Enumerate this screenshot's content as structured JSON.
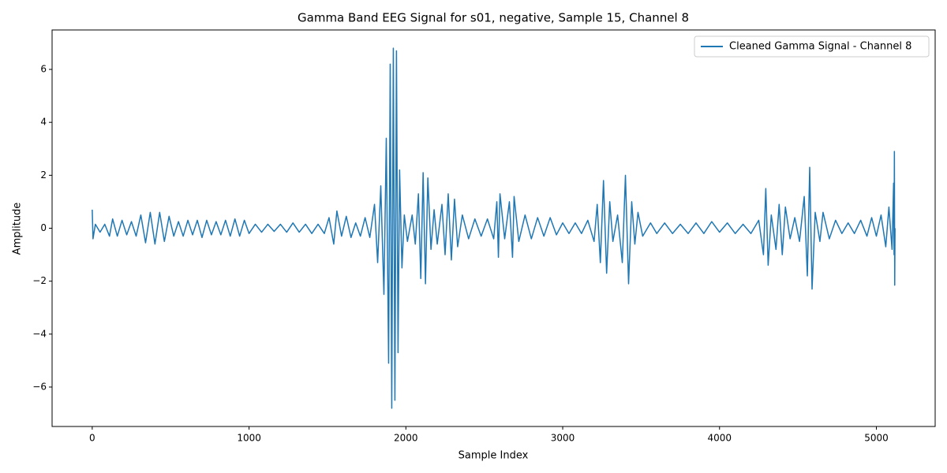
{
  "chart_data": {
    "type": "line",
    "title": "Gamma Band EEG Signal for s01, negative, Sample 15, Channel 8",
    "xlabel": "Sample Index",
    "ylabel": "Amplitude",
    "x": [
      0,
      5,
      20,
      50,
      80,
      110,
      130,
      160,
      190,
      220,
      250,
      280,
      310,
      340,
      370,
      400,
      430,
      460,
      490,
      520,
      550,
      580,
      610,
      640,
      670,
      700,
      730,
      760,
      790,
      820,
      850,
      880,
      910,
      940,
      970,
      1000,
      1040,
      1080,
      1120,
      1160,
      1200,
      1240,
      1280,
      1320,
      1360,
      1400,
      1440,
      1480,
      1510,
      1540,
      1560,
      1590,
      1620,
      1650,
      1680,
      1710,
      1740,
      1770,
      1800,
      1820,
      1840,
      1860,
      1875,
      1890,
      1900,
      1910,
      1920,
      1930,
      1940,
      1950,
      1960,
      1975,
      1990,
      2010,
      2040,
      2060,
      2080,
      2095,
      2110,
      2125,
      2140,
      2160,
      2180,
      2200,
      2230,
      2250,
      2270,
      2290,
      2310,
      2330,
      2360,
      2400,
      2440,
      2480,
      2520,
      2560,
      2580,
      2590,
      2600,
      2630,
      2660,
      2680,
      2690,
      2720,
      2760,
      2800,
      2840,
      2880,
      2920,
      2960,
      3000,
      3040,
      3080,
      3120,
      3160,
      3200,
      3220,
      3240,
      3260,
      3280,
      3300,
      3320,
      3350,
      3380,
      3400,
      3420,
      3440,
      3460,
      3480,
      3510,
      3560,
      3600,
      3650,
      3700,
      3750,
      3800,
      3850,
      3900,
      3950,
      4000,
      4050,
      4100,
      4150,
      4200,
      4250,
      4280,
      4295,
      4310,
      4330,
      4360,
      4380,
      4400,
      4420,
      4450,
      4480,
      4510,
      4540,
      4560,
      4575,
      4590,
      4610,
      4640,
      4660,
      4700,
      4740,
      4780,
      4820,
      4860,
      4900,
      4940,
      4970,
      5000,
      5030,
      5060,
      5080,
      5100,
      5110,
      5113,
      5115,
      5117,
      5119
    ],
    "series": [
      {
        "name": "Cleaned Gamma Signal - Channel 8",
        "color": "#1f77b4",
        "values": [
          0.7,
          -0.4,
          0.15,
          -0.15,
          0.15,
          -0.3,
          0.35,
          -0.3,
          0.3,
          -0.25,
          0.25,
          -0.3,
          0.5,
          -0.55,
          0.6,
          -0.6,
          0.6,
          -0.5,
          0.45,
          -0.3,
          0.25,
          -0.3,
          0.3,
          -0.25,
          0.3,
          -0.35,
          0.3,
          -0.25,
          0.25,
          -0.25,
          0.3,
          -0.3,
          0.35,
          -0.3,
          0.3,
          -0.2,
          0.15,
          -0.15,
          0.15,
          -0.12,
          0.15,
          -0.15,
          0.2,
          -0.15,
          0.15,
          -0.2,
          0.15,
          -0.2,
          0.4,
          -0.6,
          0.65,
          -0.3,
          0.45,
          -0.35,
          0.2,
          -0.3,
          0.4,
          -0.35,
          0.9,
          -1.3,
          1.6,
          -2.5,
          3.4,
          -5.1,
          6.2,
          -6.8,
          6.8,
          -6.5,
          6.7,
          -4.7,
          2.2,
          -1.5,
          0.5,
          -0.5,
          0.5,
          -0.6,
          1.3,
          -1.9,
          2.1,
          -2.1,
          1.9,
          -0.8,
          0.7,
          -0.6,
          0.9,
          -1.0,
          1.3,
          -1.2,
          1.1,
          -0.7,
          0.5,
          -0.4,
          0.35,
          -0.3,
          0.35,
          -0.4,
          1.0,
          -1.1,
          1.3,
          -0.4,
          1.0,
          -1.1,
          1.2,
          -0.5,
          0.5,
          -0.4,
          0.4,
          -0.3,
          0.4,
          -0.25,
          0.2,
          -0.2,
          0.2,
          -0.2,
          0.3,
          -0.5,
          0.9,
          -1.3,
          1.8,
          -1.7,
          1.0,
          -0.5,
          0.5,
          -1.3,
          2.0,
          -2.1,
          1.0,
          -0.6,
          0.6,
          -0.3,
          0.2,
          -0.2,
          0.2,
          -0.2,
          0.15,
          -0.2,
          0.2,
          -0.2,
          0.25,
          -0.15,
          0.2,
          -0.2,
          0.15,
          -0.2,
          0.3,
          -1.0,
          1.5,
          -1.4,
          0.5,
          -0.8,
          0.9,
          -1.0,
          0.8,
          -0.4,
          0.4,
          -0.5,
          1.2,
          -1.8,
          2.3,
          -2.3,
          0.6,
          -0.5,
          0.6,
          -0.4,
          0.3,
          -0.2,
          0.2,
          -0.2,
          0.3,
          -0.3,
          0.4,
          -0.3,
          0.5,
          -0.7,
          0.8,
          -0.8,
          1.7,
          -1.0,
          2.9,
          -2.15,
          0.0
        ]
      }
    ],
    "xlim": [
      -255.95,
      5374.95
    ],
    "ylim": [
      -7.49,
      7.49
    ],
    "xticks": [
      0,
      1000,
      2000,
      3000,
      4000,
      5000
    ],
    "yticks": [
      {
        "value": -6,
        "label": "−6"
      },
      {
        "value": -4,
        "label": "−4"
      },
      {
        "value": -2,
        "label": "−2"
      },
      0,
      2,
      4,
      6
    ],
    "grid": false,
    "legend": "upper right"
  }
}
